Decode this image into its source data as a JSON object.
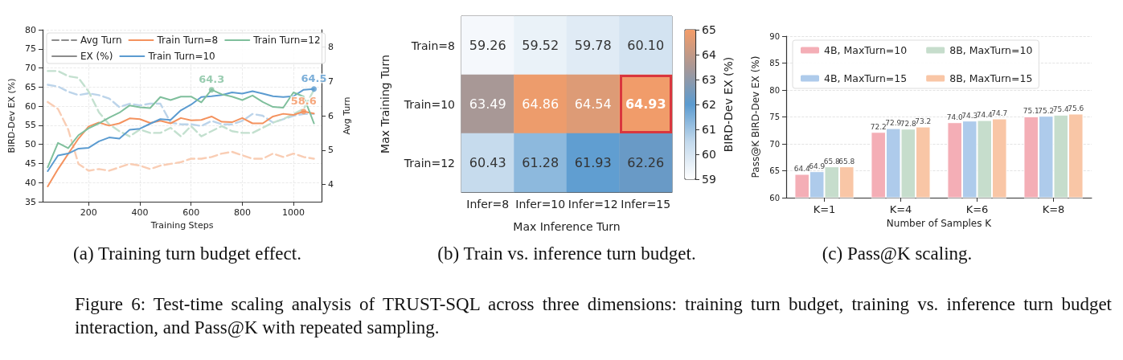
{
  "chart_data": [
    {
      "type": "line",
      "x": [
        40,
        80,
        120,
        160,
        200,
        240,
        280,
        320,
        360,
        400,
        440,
        480,
        520,
        560,
        600,
        640,
        680,
        720,
        760,
        800,
        840,
        880,
        920,
        960,
        1000,
        1040,
        1080
      ],
      "xlim": [
        20,
        1110
      ],
      "xticks": [
        200,
        400,
        600,
        800,
        1000
      ],
      "ylim": [
        35,
        80
      ],
      "yticks": [
        35,
        40,
        45,
        50,
        55,
        60,
        65,
        70,
        75,
        80
      ],
      "y2lim": [
        3.5,
        8.5
      ],
      "y2ticks": [
        4,
        5,
        6,
        7,
        8
      ],
      "xlabel": "Training Steps",
      "ylabel": "BIRD-Dev EX (%)",
      "y2label": "Avg Turn",
      "legend": "top",
      "grid": true,
      "marker": "none",
      "line_style": "solid",
      "series": [
        {
          "name": "Avg Turn",
          "color": "#8c8c8c",
          "line_style": "dashed",
          "values": [
            null,
            null,
            null,
            null,
            null,
            null,
            null,
            null,
            null,
            null,
            null,
            null,
            null,
            null,
            null,
            null,
            null,
            null,
            null,
            null,
            null,
            null,
            null,
            null,
            null,
            null,
            null
          ]
        },
        {
          "name": "EX (%)",
          "color": "#8c8c8c",
          "values": [
            null,
            null,
            null,
            null,
            null,
            null,
            null,
            null,
            null,
            null,
            null,
            null,
            null,
            null,
            null,
            null,
            null,
            null,
            null,
            null,
            null,
            null,
            null,
            null,
            null,
            null,
            null
          ]
        },
        {
          "name": "Train Turn=8",
          "color": "#f4925e",
          "values": [
            39.0,
            43.5,
            47.5,
            51.5,
            54.7,
            55.7,
            54.9,
            55.5,
            56.8,
            56.6,
            55.6,
            56.2,
            55.5,
            56.9,
            56.3,
            56.4,
            57.3,
            55.9,
            55.8,
            56.9,
            55.5,
            55.5,
            57.3,
            58.0,
            57.7,
            58.6,
            58.1
          ]
        },
        {
          "name": "Train Turn=10",
          "color": "#5b9bd0",
          "values": [
            43.0,
            47.1,
            47.6,
            48.9,
            49.1,
            50.8,
            51.8,
            51.5,
            53.8,
            54.1,
            55.4,
            56.6,
            56.4,
            58.9,
            60.4,
            62.4,
            62.6,
            62.9,
            63.6,
            63.3,
            63.9,
            63.3,
            62.6,
            62.4,
            62.6,
            64.3,
            64.5
          ]
        },
        {
          "name": "Train Turn=12",
          "color": "#7fbf9c",
          "values": [
            44.0,
            50.4,
            49.0,
            52.4,
            54.2,
            55.5,
            57.0,
            58.3,
            60.2,
            59.7,
            59.5,
            62.4,
            61.6,
            62.5,
            62.5,
            61.0,
            64.3,
            63.1,
            62.5,
            61.6,
            62.8,
            61.1,
            59.8,
            59.6,
            63.6,
            62.5,
            55.5
          ]
        },
        {
          "color": "#f9cdb4",
          "axis": "y2",
          "line_style": "dashed",
          "values": [
            6.4,
            6.2,
            5.6,
            4.6,
            4.4,
            4.45,
            4.4,
            4.5,
            4.6,
            4.55,
            4.45,
            4.55,
            4.6,
            4.65,
            4.75,
            4.75,
            4.8,
            4.9,
            4.95,
            4.85,
            4.75,
            4.75,
            4.9,
            4.8,
            4.9,
            4.8,
            4.75
          ]
        },
        {
          "color": "#bcd4ea",
          "axis": "y2",
          "line_style": "dashed",
          "values": [
            6.9,
            6.85,
            6.7,
            6.6,
            6.65,
            6.6,
            6.5,
            6.25,
            6.35,
            6.3,
            6.35,
            6.35,
            5.8,
            5.75,
            5.75,
            5.7,
            5.85,
            5.75,
            5.75,
            5.85,
            6.05,
            6.0,
            5.8,
            5.9,
            6.0,
            6.05,
            6.05
          ]
        },
        {
          "color": "#c3e0cf",
          "axis": "y2",
          "line_style": "dashed",
          "values": [
            7.3,
            7.3,
            7.15,
            7.1,
            6.7,
            6.1,
            5.75,
            5.55,
            5.4,
            5.6,
            5.5,
            5.5,
            5.65,
            5.4,
            5.7,
            5.4,
            5.55,
            5.7,
            5.55,
            5.5,
            5.5,
            5.65,
            5.8,
            5.9,
            6.05,
            6.2,
            6.75
          ]
        }
      ],
      "annotations": [
        {
          "text": "64.3",
          "x": 680,
          "y": 64.3
        },
        {
          "text": "58.6",
          "x": 1040,
          "y": 58.6
        },
        {
          "text": "64.5",
          "x": 1080,
          "y": 64.5
        },
        "(a) Training turn budget effect."
      ]
    },
    {
      "type": "heatmap",
      "categories": [
        "Infer=8",
        "Infer=10",
        "Infer=12",
        "Infer=15"
      ],
      "y_categories": [
        "Train=8",
        "Train=10",
        "Train=12"
      ],
      "cells": [
        [
          59.26,
          59.52,
          59.78,
          60.1
        ],
        [
          63.49,
          64.86,
          64.54,
          64.93
        ],
        [
          60.43,
          61.28,
          61.93,
          62.26
        ]
      ],
      "cell_labels": [
        [
          "59.26",
          "59.52",
          "59.78",
          "60.10"
        ],
        [
          "63.49",
          "64.86",
          "64.54",
          "64.93"
        ],
        [
          "60.43",
          "61.28",
          "61.93",
          "62.26"
        ]
      ],
      "clim": [
        59,
        65
      ],
      "cticks": [
        59,
        60,
        61,
        62,
        63,
        64,
        65
      ],
      "clabel": "BIRD-Dev EX (%)",
      "xlabel": "Max Inference Turn",
      "ylabel": "Max Training Turn",
      "annotations": [
        "(b) Train vs. inference turn budget."
      ]
    },
    {
      "type": "bar",
      "categories": [
        "K=1",
        "K=4",
        "K=6",
        "K=8"
      ],
      "ylim": [
        60,
        90
      ],
      "yticks": [
        60,
        65,
        70,
        75,
        80,
        85,
        90
      ],
      "xlabel": "Number of Samples K",
      "ylabel": "Pass@K BIRD-Dev EX (%)",
      "legend": "top left",
      "grid": "y",
      "series": [
        {
          "name": "4B, MaxTurn=10",
          "color": "#f4aeb6",
          "values": [
            64.4,
            72.2,
            74.0,
            75.1
          ],
          "value_labels": [
            "64.4",
            "72.2",
            "74.0",
            "75.1"
          ]
        },
        {
          "name": "4B, MaxTurn=15",
          "color": "#aecbeb",
          "values": [
            64.9,
            72.9,
            74.3,
            75.2
          ],
          "value_labels": [
            "64.9",
            "72.9",
            "74.3",
            "75.2"
          ]
        },
        {
          "name": "8B, MaxTurn=10",
          "color": "#c6ddcc",
          "values": [
            65.8,
            72.8,
            74.4,
            75.4
          ],
          "value_labels": [
            "65.8",
            "72.8",
            "74.4",
            "75.4"
          ]
        },
        {
          "name": "8B, MaxTurn=15",
          "color": "#f9c6a6",
          "values": [
            65.8,
            73.2,
            74.7,
            75.6
          ],
          "value_labels": [
            "65.8",
            "73.2",
            "74.7",
            "75.6"
          ]
        }
      ],
      "annotations": [
        "(c) Pass@K scaling.",
        "Figure 6: Test-time scaling analysis of TRUST-SQL across three dimensions: training turn budget, training vs. inference turn budget interaction, and Pass@K with repeated sampling."
      ]
    }
  ]
}
